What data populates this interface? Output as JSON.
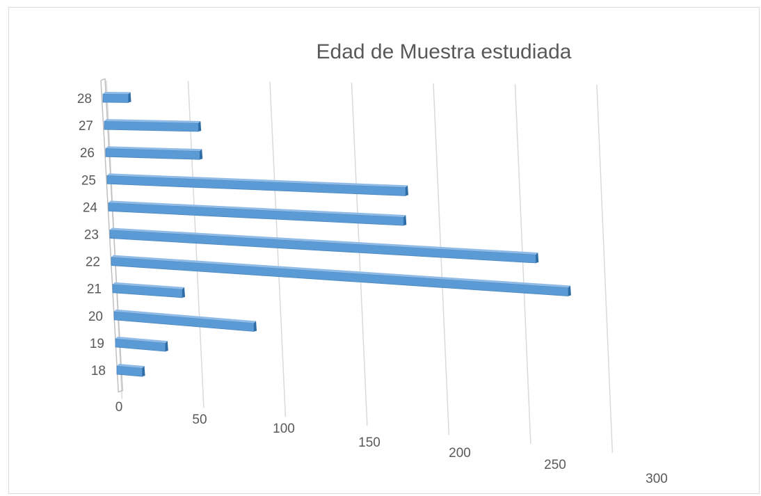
{
  "chart_data": {
    "type": "bar",
    "orientation": "horizontal",
    "title": "Edad de Muestra estudiada",
    "xlabel": "",
    "ylabel": "",
    "categories": [
      "18",
      "19",
      "20",
      "21",
      "22",
      "23",
      "24",
      "25",
      "26",
      "27",
      "28"
    ],
    "series": [
      {
        "values": [
          13,
          28,
          83,
          40,
          277,
          258,
          178,
          180,
          55,
          55,
          13
        ]
      }
    ],
    "x_ticks": [
      "0",
      "50",
      "100",
      "150",
      "200",
      "250",
      "300"
    ],
    "xlim": [
      0,
      300
    ],
    "grid": true,
    "legend": "none",
    "style": "3d-perspective",
    "colors": {
      "bar": "#5b9bd5",
      "bar_side": "#2e6ca6",
      "grid": "#d9d9d9",
      "text": "#595959"
    }
  }
}
